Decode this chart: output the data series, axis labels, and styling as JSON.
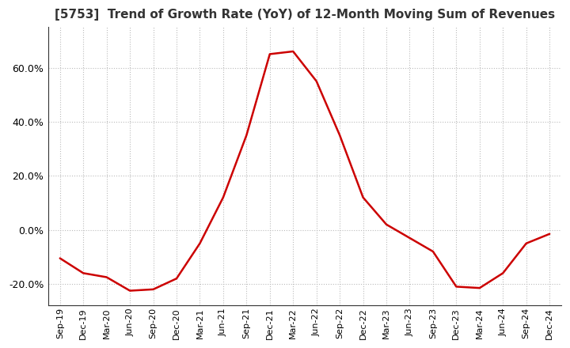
{
  "title": "[5753]  Trend of Growth Rate (YoY) of 12-Month Moving Sum of Revenues",
  "title_fontsize": 11,
  "line_color": "#cc0000",
  "background_color": "#ffffff",
  "grid_color": "#bbbbbb",
  "ylim": [
    -28,
    75
  ],
  "yticks": [
    -20,
    0,
    20,
    40,
    60
  ],
  "x_labels": [
    "Sep-19",
    "Dec-19",
    "Mar-20",
    "Jun-20",
    "Sep-20",
    "Dec-20",
    "Mar-21",
    "Jun-21",
    "Sep-21",
    "Dec-21",
    "Mar-22",
    "Jun-22",
    "Sep-22",
    "Dec-22",
    "Mar-23",
    "Jun-23",
    "Sep-23",
    "Dec-23",
    "Mar-24",
    "Jun-24",
    "Sep-24",
    "Dec-24"
  ],
  "y_values": [
    -10.5,
    -16.0,
    -17.5,
    -22.5,
    -22.0,
    -18.0,
    -5.0,
    12.0,
    35.0,
    65.0,
    66.0,
    55.0,
    35.0,
    12.0,
    2.0,
    -3.0,
    -8.0,
    -21.0,
    -21.5,
    -16.0,
    -5.0,
    -1.5
  ]
}
